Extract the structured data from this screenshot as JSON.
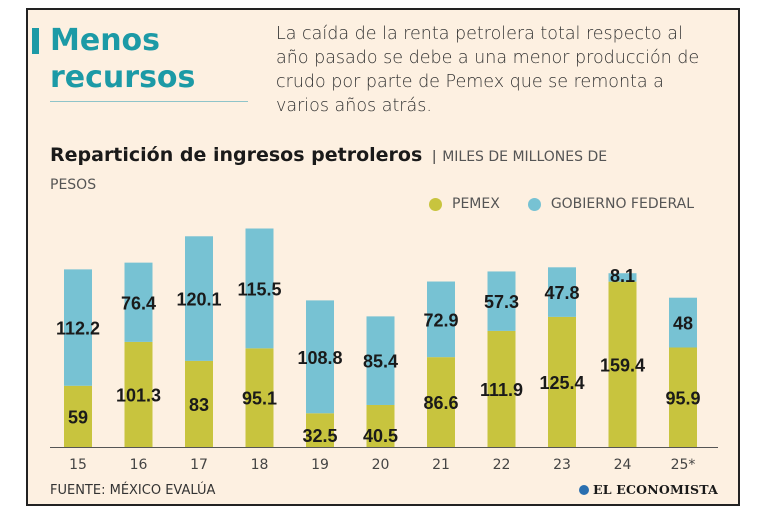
{
  "headline": [
    "Menos",
    "recursos"
  ],
  "intro": "La caída de la renta petrolera total respecto al año pasado se debe a una menor producción de crudo por parte de Pemex que se remonta a varios años atrás.",
  "source": "FUENTE: MÉXICO EVALÚA",
  "brand": "EL ECONOMISTA",
  "colors": {
    "pemex": "#c8c43e",
    "gobierno": "#77c2d3",
    "accent": "#1c9aa6",
    "background": "#fdf0e1"
  },
  "chart_data": {
    "type": "bar",
    "stacked": true,
    "title": "Repartición de ingresos petroleros",
    "unit": "MILES DE MILLONES DE PESOS",
    "categories": [
      "15",
      "16",
      "17",
      "18",
      "19",
      "20",
      "21",
      "22",
      "23",
      "24",
      "25*"
    ],
    "series": [
      {
        "name": "PEMEX",
        "values": [
          59,
          101.3,
          83,
          95.1,
          32.5,
          40.5,
          86.6,
          111.9,
          125.4,
          159.4,
          95.9
        ]
      },
      {
        "name": "GOBIERNO FEDERAL",
        "values": [
          112.2,
          76.4,
          120.1,
          115.5,
          108.8,
          85.4,
          72.9,
          57.3,
          47.8,
          8.1,
          48
        ]
      }
    ],
    "ylim": [
      0,
      240
    ],
    "grid": false,
    "legend": "top-right"
  }
}
